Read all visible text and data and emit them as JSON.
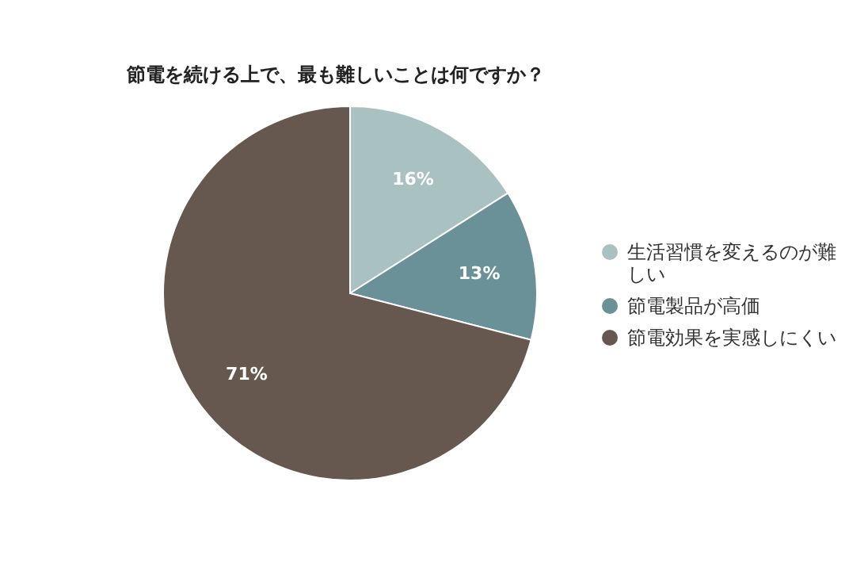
{
  "chart_data": {
    "type": "pie",
    "title": "節電を続ける上で、最も難しいことは何ですか？",
    "categories": [
      "生活習慣を変えるのが難しい",
      "節電製品が高価",
      "節電効果を実感しにくい"
    ],
    "values": [
      16,
      13,
      71
    ],
    "colors": [
      "#a9c1c1",
      "#6a9197",
      "#66584e"
    ],
    "value_labels": [
      "16%",
      "13%",
      "71%"
    ],
    "legend": "right"
  }
}
